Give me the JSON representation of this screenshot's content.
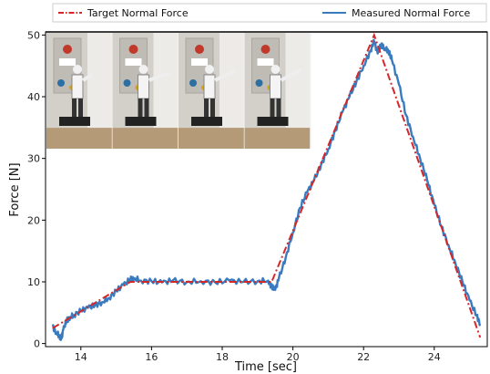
{
  "chart_data": {
    "type": "line",
    "title": "",
    "xlabel": "Time [sec]",
    "ylabel": "Force [N]",
    "xlim": [
      13,
      25.5
    ],
    "ylim": [
      -0.5,
      50.5
    ],
    "xticks": [
      14,
      16,
      18,
      20,
      22,
      24
    ],
    "yticks": [
      0,
      10,
      20,
      30,
      40,
      50
    ],
    "grid": false,
    "legend_position": "top",
    "inset_image": "robot-photo-sequence",
    "colors": {
      "target": "#d62728",
      "measured": "#3a7bbf"
    },
    "series": [
      {
        "name": "Target Normal Force",
        "style": "dash-dot",
        "points": [
          [
            13.2,
            2.5
          ],
          [
            15.4,
            10.0
          ],
          [
            19.4,
            10.0
          ],
          [
            22.3,
            50.0
          ],
          [
            25.3,
            1.0
          ]
        ]
      },
      {
        "name": "Measured Normal Force",
        "style": "solid",
        "points": [
          [
            13.2,
            2.8
          ],
          [
            13.3,
            1.8
          ],
          [
            13.4,
            1.2
          ],
          [
            13.45,
            0.8
          ],
          [
            13.5,
            2.2
          ],
          [
            13.6,
            3.8
          ],
          [
            13.7,
            4.3
          ],
          [
            13.8,
            4.6
          ],
          [
            14.0,
            5.3
          ],
          [
            14.2,
            5.8
          ],
          [
            14.4,
            6.2
          ],
          [
            14.6,
            6.7
          ],
          [
            14.8,
            7.4
          ],
          [
            15.0,
            8.5
          ],
          [
            15.2,
            9.5
          ],
          [
            15.4,
            10.4
          ],
          [
            15.5,
            10.6
          ],
          [
            15.7,
            10.2
          ],
          [
            16.0,
            10.1
          ],
          [
            16.3,
            9.9
          ],
          [
            16.6,
            10.2
          ],
          [
            17.0,
            10.0
          ],
          [
            17.4,
            10.1
          ],
          [
            17.8,
            9.9
          ],
          [
            18.2,
            10.2
          ],
          [
            18.6,
            10.0
          ],
          [
            19.0,
            10.1
          ],
          [
            19.3,
            10.2
          ],
          [
            19.4,
            9.2
          ],
          [
            19.5,
            8.7
          ],
          [
            19.6,
            10.5
          ],
          [
            19.8,
            14.0
          ],
          [
            20.0,
            18.0
          ],
          [
            20.2,
            22.0
          ],
          [
            20.4,
            24.5
          ],
          [
            20.6,
            26.5
          ],
          [
            20.8,
            29.0
          ],
          [
            21.0,
            31.5
          ],
          [
            21.2,
            34.5
          ],
          [
            21.4,
            37.5
          ],
          [
            21.6,
            40.0
          ],
          [
            21.8,
            42.5
          ],
          [
            22.0,
            45.0
          ],
          [
            22.2,
            47.5
          ],
          [
            22.3,
            49.0
          ],
          [
            22.4,
            47.0
          ],
          [
            22.5,
            48.5
          ],
          [
            22.6,
            47.8
          ],
          [
            22.7,
            47.5
          ],
          [
            22.8,
            46.0
          ],
          [
            23.0,
            42.0
          ],
          [
            23.2,
            37.0
          ],
          [
            23.4,
            33.5
          ],
          [
            23.6,
            30.0
          ],
          [
            23.8,
            26.5
          ],
          [
            24.0,
            22.5
          ],
          [
            24.2,
            19.0
          ],
          [
            24.4,
            16.0
          ],
          [
            24.6,
            13.0
          ],
          [
            24.8,
            10.0
          ],
          [
            25.0,
            7.0
          ],
          [
            25.2,
            4.5
          ],
          [
            25.3,
            3.2
          ]
        ]
      }
    ]
  }
}
